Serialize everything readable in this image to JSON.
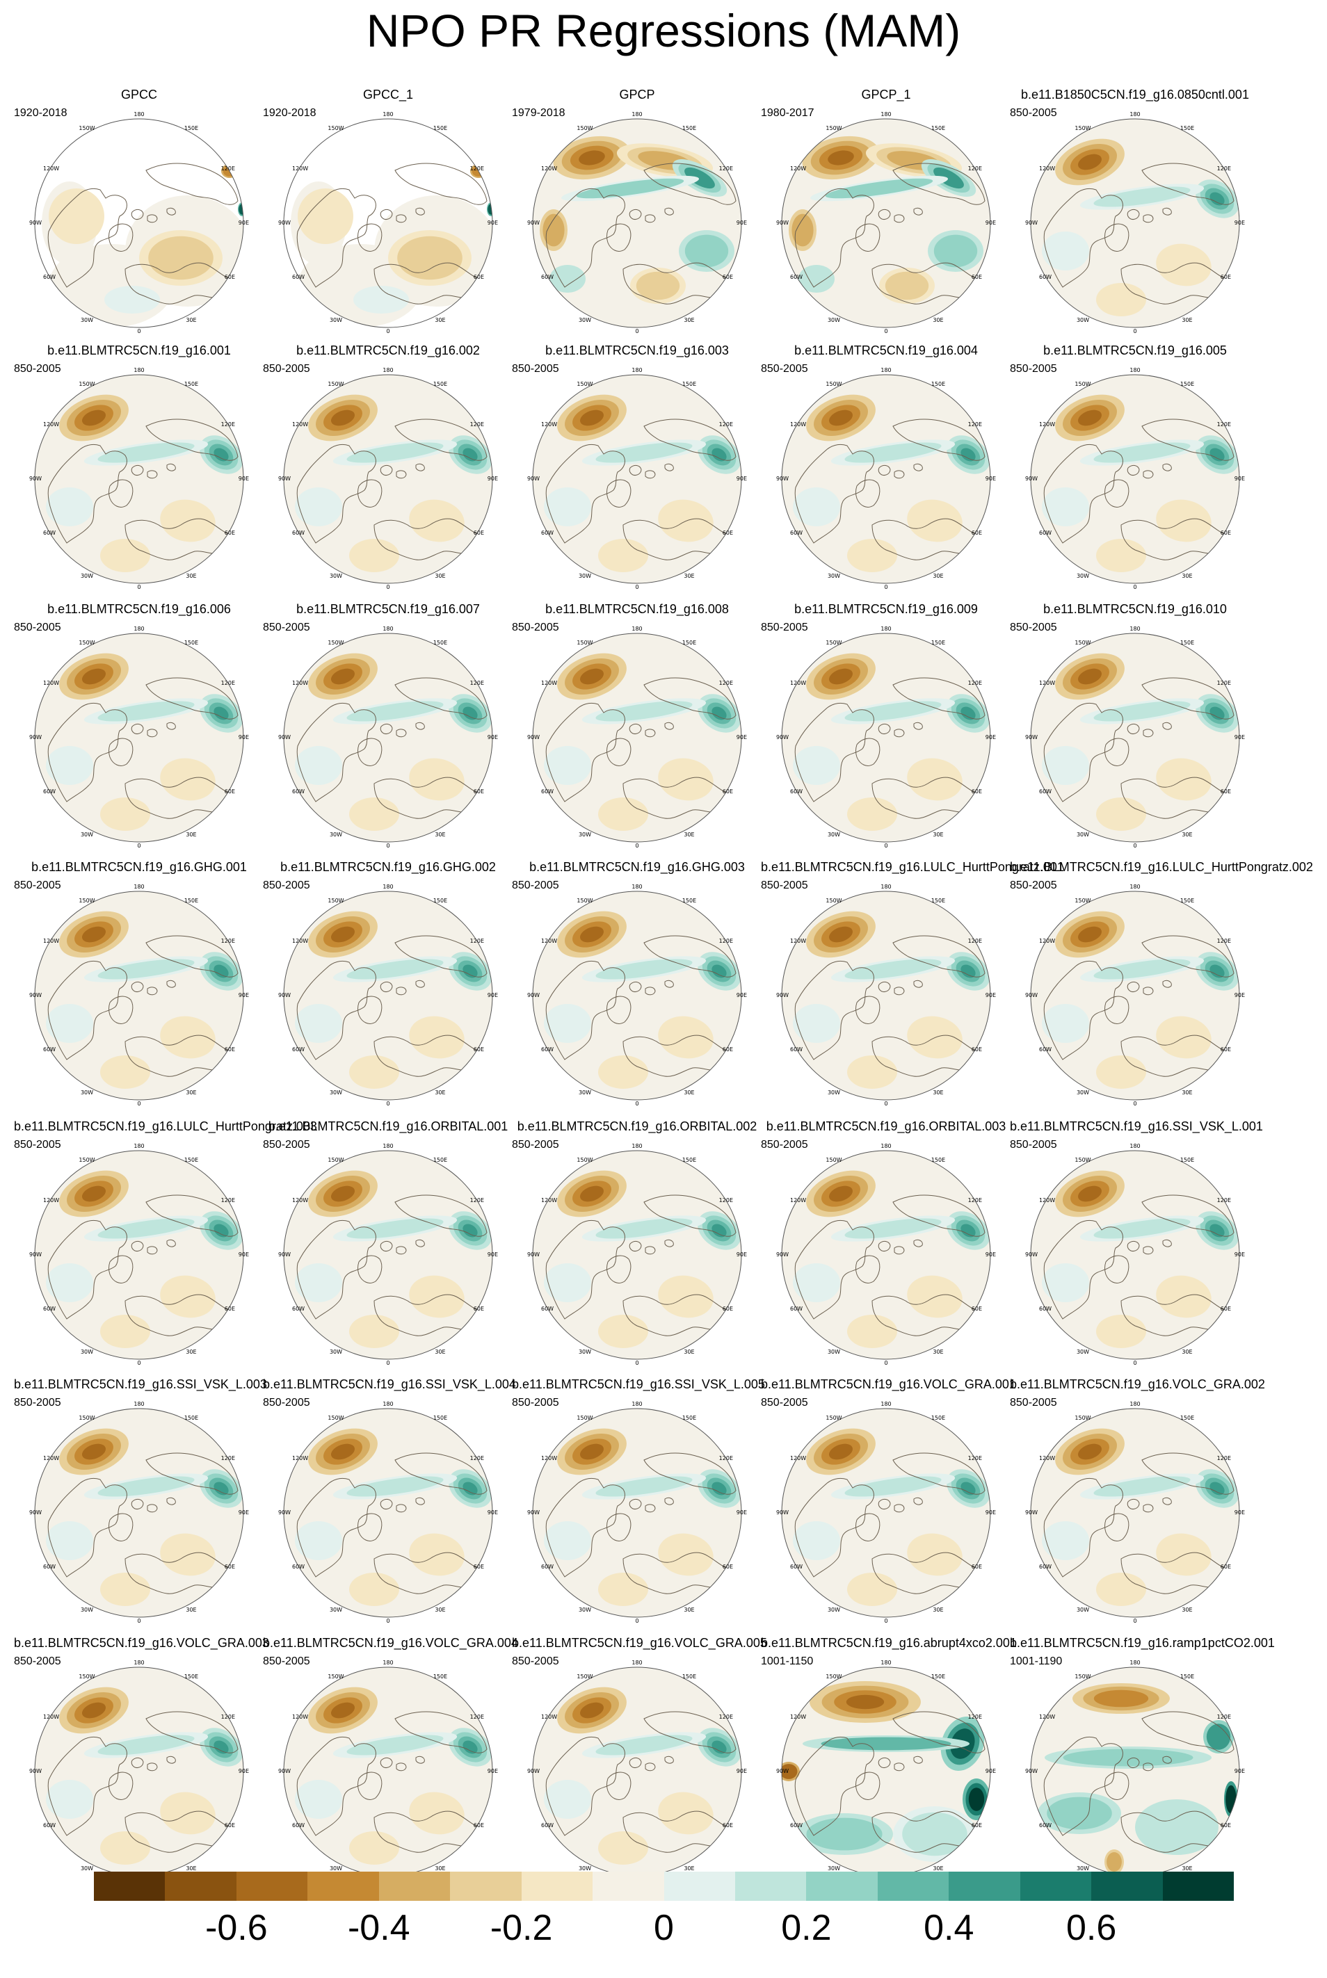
{
  "title": "NPO PR Regressions (MAM)",
  "map_labels": {
    "top": "180",
    "top_left": "150W",
    "top_right": "150E",
    "upper_left": "120W",
    "upper_right": "120E",
    "left": "90W",
    "right": "90E",
    "lower_left": "60W",
    "lower_right": "60E",
    "bottom_left": "30W",
    "bottom_right": "30E",
    "bottom": "0"
  },
  "panels": [
    {
      "title": "GPCC",
      "period": "1920-2018",
      "style": "obs_sparse"
    },
    {
      "title": "GPCC_1",
      "period": "1920-2018",
      "style": "obs_sparse"
    },
    {
      "title": "GPCP",
      "period": "1979-2018",
      "style": "obs_strong"
    },
    {
      "title": "GPCP_1",
      "period": "1980-2017",
      "style": "obs_strong"
    },
    {
      "title": "b.e11.B1850C5CN.f19_g16.0850cntl.001",
      "period": "850-2005",
      "style": "model"
    },
    {
      "title": "b.e11.BLMTRC5CN.f19_g16.001",
      "period": "850-2005",
      "style": "model"
    },
    {
      "title": "b.e11.BLMTRC5CN.f19_g16.002",
      "period": "850-2005",
      "style": "model"
    },
    {
      "title": "b.e11.BLMTRC5CN.f19_g16.003",
      "period": "850-2005",
      "style": "model"
    },
    {
      "title": "b.e11.BLMTRC5CN.f19_g16.004",
      "period": "850-2005",
      "style": "model"
    },
    {
      "title": "b.e11.BLMTRC5CN.f19_g16.005",
      "period": "850-2005",
      "style": "model"
    },
    {
      "title": "b.e11.BLMTRC5CN.f19_g16.006",
      "period": "850-2005",
      "style": "model"
    },
    {
      "title": "b.e11.BLMTRC5CN.f19_g16.007",
      "period": "850-2005",
      "style": "model"
    },
    {
      "title": "b.e11.BLMTRC5CN.f19_g16.008",
      "period": "850-2005",
      "style": "model"
    },
    {
      "title": "b.e11.BLMTRC5CN.f19_g16.009",
      "period": "850-2005",
      "style": "model"
    },
    {
      "title": "b.e11.BLMTRC5CN.f19_g16.010",
      "period": "850-2005",
      "style": "model"
    },
    {
      "title": "b.e11.BLMTRC5CN.f19_g16.GHG.001",
      "period": "850-2005",
      "style": "model"
    },
    {
      "title": "b.e11.BLMTRC5CN.f19_g16.GHG.002",
      "period": "850-2005",
      "style": "model"
    },
    {
      "title": "b.e11.BLMTRC5CN.f19_g16.GHG.003",
      "period": "850-2005",
      "style": "model"
    },
    {
      "title": "b.e11.BLMTRC5CN.f19_g16.LULC_HurttPongratz.001",
      "period": "850-2005",
      "style": "model"
    },
    {
      "title": "b.e11.BLMTRC5CN.f19_g16.LULC_HurttPongratz.002",
      "period": "850-2005",
      "style": "model"
    },
    {
      "title": "b.e11.BLMTRC5CN.f19_g16.LULC_HurttPongratz.003",
      "period": "850-2005",
      "style": "model"
    },
    {
      "title": "b.e11.BLMTRC5CN.f19_g16.ORBITAL.001",
      "period": "850-2005",
      "style": "model"
    },
    {
      "title": "b.e11.BLMTRC5CN.f19_g16.ORBITAL.002",
      "period": "850-2005",
      "style": "model"
    },
    {
      "title": "b.e11.BLMTRC5CN.f19_g16.ORBITAL.003",
      "period": "850-2005",
      "style": "model"
    },
    {
      "title": "b.e11.BLMTRC5CN.f19_g16.SSI_VSK_L.001",
      "period": "850-2005",
      "style": "model"
    },
    {
      "title": "b.e11.BLMTRC5CN.f19_g16.SSI_VSK_L.003",
      "period": "850-2005",
      "style": "model"
    },
    {
      "title": "b.e11.BLMTRC5CN.f19_g16.SSI_VSK_L.004",
      "period": "850-2005",
      "style": "model"
    },
    {
      "title": "b.e11.BLMTRC5CN.f19_g16.SSI_VSK_L.005",
      "period": "850-2005",
      "style": "model"
    },
    {
      "title": "b.e11.BLMTRC5CN.f19_g16.VOLC_GRA.001",
      "period": "850-2005",
      "style": "model"
    },
    {
      "title": "b.e11.BLMTRC5CN.f19_g16.VOLC_GRA.002",
      "period": "850-2005",
      "style": "model"
    },
    {
      "title": "b.e11.BLMTRC5CN.f19_g16.VOLC_GRA.003",
      "period": "850-2005",
      "style": "model"
    },
    {
      "title": "b.e11.BLMTRC5CN.f19_g16.VOLC_GRA.004",
      "period": "850-2005",
      "style": "model"
    },
    {
      "title": "b.e11.BLMTRC5CN.f19_g16.VOLC_GRA.005",
      "period": "850-2005",
      "style": "model"
    },
    {
      "title": "b.e11.BLMTRC5CN.f19_g16.abrupt4xco2.001",
      "period": "1001-1150",
      "style": "abrupt"
    },
    {
      "title": "b.e11.BLMTRC5CN.f19_g16.ramp1pctCO2.001",
      "period": "1001-1190",
      "style": "ramp"
    }
  ],
  "colorbar": {
    "colors": [
      "#5a3306",
      "#8a5310",
      "#a86a1c",
      "#c58933",
      "#d6ad62",
      "#e8cf98",
      "#f5e7c4",
      "#f5f1e6",
      "#e3f1ee",
      "#bfe5dc",
      "#93d3c5",
      "#62b8a7",
      "#3a9b8a",
      "#1b7d6d",
      "#0b5e51",
      "#003c30"
    ],
    "tick_labels": [
      "-0.6",
      "-0.4",
      "-0.2",
      "0",
      "0.2",
      "0.4",
      "0.6"
    ]
  },
  "colors": {
    "land_outline": "#6b6050",
    "map_border": "#555555",
    "neutral": "#f4f1e8"
  }
}
